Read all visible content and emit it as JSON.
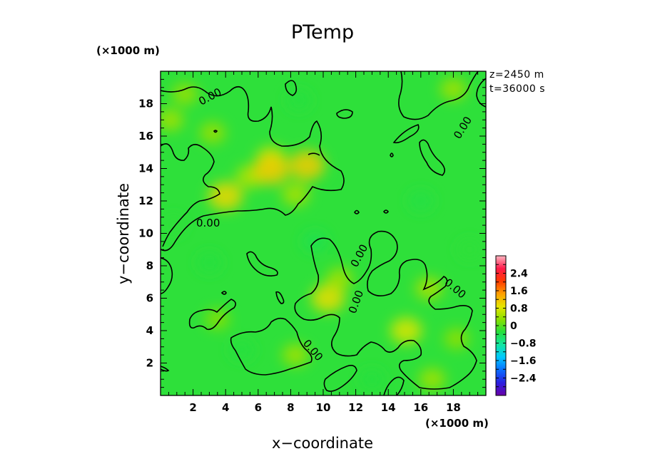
{
  "chart_data": {
    "type": "heatmap",
    "title": "PTemp",
    "xlabel": "x−coordinate",
    "ylabel": "y−coordinate",
    "x_scale_note": "(×1000 m)",
    "y_scale_note": "(×1000 m)",
    "info_lines": [
      "z=2450 m",
      "t=36000 s"
    ],
    "xlim": [
      0,
      20
    ],
    "ylim": [
      0,
      20
    ],
    "x_ticks": [
      "2",
      "4",
      "6",
      "8",
      "10",
      "12",
      "14",
      "16",
      "18"
    ],
    "y_ticks": [
      "2",
      "4",
      "6",
      "8",
      "10",
      "12",
      "14",
      "16",
      "18"
    ],
    "contour_level_label": "0.00",
    "colorbar": {
      "range": [
        -3.2,
        3.2
      ],
      "tick_labels": [
        "2.4",
        "1.6",
        "0.8",
        "0",
        "−0.8",
        "−1.6",
        "−2.4"
      ],
      "tick_values": [
        2.4,
        1.6,
        0.8,
        0,
        -0.8,
        -1.6,
        -2.4
      ]
    },
    "warm_regions": [
      {
        "x": 0.6,
        "y": 17.0,
        "value": 0.45
      },
      {
        "x": 1.5,
        "y": 18.6,
        "value": 0.4
      },
      {
        "x": 3.2,
        "y": 16.2,
        "value": 0.4
      },
      {
        "x": 4.0,
        "y": 12.3,
        "value": 1.0
      },
      {
        "x": 5.5,
        "y": 13.5,
        "value": 0.55
      },
      {
        "x": 6.8,
        "y": 14.6,
        "value": 0.7
      },
      {
        "x": 6.8,
        "y": 13.9,
        "value": 1.1
      },
      {
        "x": 9.0,
        "y": 14.2,
        "value": 1.1
      },
      {
        "x": 8.3,
        "y": 12.4,
        "value": 0.5
      },
      {
        "x": 18.0,
        "y": 18.9,
        "value": 0.45
      },
      {
        "x": 10.3,
        "y": 6.0,
        "value": 0.95
      },
      {
        "x": 11.0,
        "y": 7.2,
        "value": 0.45
      },
      {
        "x": 15.1,
        "y": 4.0,
        "value": 0.8
      },
      {
        "x": 16.5,
        "y": 6.6,
        "value": 0.5
      },
      {
        "x": 16.7,
        "y": 1.0,
        "value": 0.45
      },
      {
        "x": 8.3,
        "y": 2.5,
        "value": 0.45
      },
      {
        "x": 3.5,
        "y": 4.7,
        "value": 0.3
      },
      {
        "x": 18.2,
        "y": 3.5,
        "value": 0.35
      }
    ],
    "cool_regions": [
      {
        "x": 9.5,
        "y": 9.5,
        "value": -0.4
      },
      {
        "x": 3.0,
        "y": 8.2,
        "value": -0.3
      },
      {
        "x": 8.5,
        "y": 18.2,
        "value": -0.3
      },
      {
        "x": 16.0,
        "y": 12.0,
        "value": -0.35
      },
      {
        "x": 5.0,
        "y": 2.8,
        "value": -0.3
      },
      {
        "x": 13.0,
        "y": 1.0,
        "value": -0.3
      },
      {
        "x": 0.8,
        "y": 10.5,
        "value": -0.25
      },
      {
        "x": 19.0,
        "y": 9.0,
        "value": -0.25
      }
    ]
  },
  "colors": {
    "base_green": "#2ee03a",
    "contour": "#000000",
    "colorbar_stops": [
      "#6a00a8",
      "#2a1fe0",
      "#0a6dff",
      "#00c8ff",
      "#13e6a0",
      "#26e03c",
      "#8ae000",
      "#e6e600",
      "#ffa000",
      "#ff3a00",
      "#ff1a4a",
      "#ffb6c1"
    ]
  }
}
